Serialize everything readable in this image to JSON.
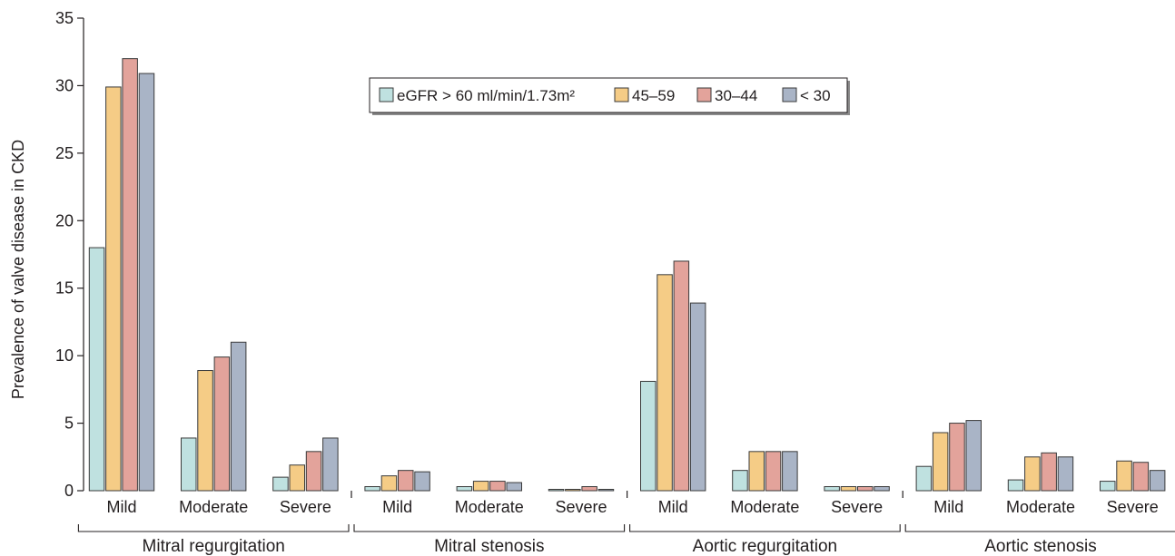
{
  "chart_data": {
    "type": "bar",
    "ylabel": "Prevalence of valve disease in CKD",
    "ylim": [
      0,
      35
    ],
    "yticks": [
      0,
      5,
      10,
      15,
      20,
      25,
      30,
      35
    ],
    "groups": [
      {
        "label": "Mitral regurgitation",
        "categories": [
          "Mild",
          "Moderate",
          "Severe"
        ]
      },
      {
        "label": "Mitral stenosis",
        "categories": [
          "Mild",
          "Moderate",
          "Severe"
        ]
      },
      {
        "label": "Aortic regurgitation",
        "categories": [
          "Mild",
          "Moderate",
          "Severe"
        ]
      },
      {
        "label": "Aortic stenosis",
        "categories": [
          "Mild",
          "Moderate",
          "Severe"
        ]
      }
    ],
    "legend_position": "top-center",
    "series": [
      {
        "name": "eGFR > 60 ml/min/1.73m²",
        "color": "#bfe1e0",
        "values": [
          18,
          3.9,
          1,
          0.3,
          0.3,
          0.1,
          8.1,
          1.5,
          0.3,
          1.8,
          0.8,
          0.7
        ]
      },
      {
        "name": "45–59",
        "color": "#f5cc86",
        "values": [
          29.9,
          8.9,
          1.9,
          1.1,
          0.7,
          0.1,
          16,
          2.9,
          0.3,
          4.3,
          2.5,
          2.2
        ]
      },
      {
        "name": "30–44",
        "color": "#e3a39b",
        "values": [
          32,
          9.9,
          2.9,
          1.5,
          0.7,
          0.3,
          17,
          2.9,
          0.3,
          5,
          2.8,
          2.1
        ]
      },
      {
        "name": "< 30",
        "color": "#a9b4c6",
        "values": [
          30.9,
          11,
          3.9,
          1.4,
          0.6,
          0.1,
          13.9,
          2.9,
          0.3,
          5.2,
          2.5,
          1.5
        ]
      }
    ]
  }
}
